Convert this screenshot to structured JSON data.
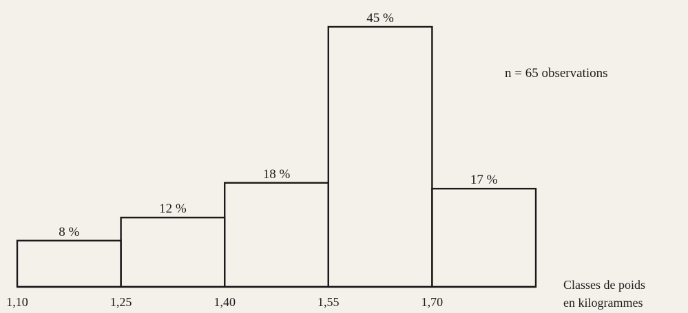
{
  "chart_data": {
    "type": "bar",
    "title": "",
    "ylabel": "",
    "xlabel_lines": [
      "Classes de poids",
      "en kilogrammes"
    ],
    "annotation": "n = 65 observations",
    "bin_edges": [
      1.1,
      1.25,
      1.4,
      1.55,
      1.7,
      1.85
    ],
    "tick_labels": [
      "1,10",
      "1,25",
      "1,40",
      "1,55",
      "1,70"
    ],
    "values": [
      8,
      12,
      18,
      45,
      17
    ],
    "value_labels": [
      "8 %",
      "12 %",
      "18 %",
      "45 %",
      "17 %"
    ],
    "unit": "%",
    "ylim": [
      0,
      50
    ],
    "grid": false
  }
}
